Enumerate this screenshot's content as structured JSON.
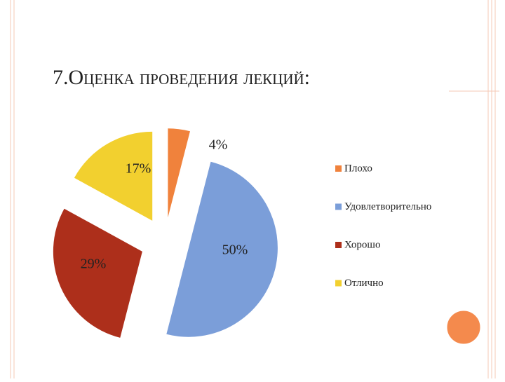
{
  "chart_data": {
    "type": "pie",
    "title": "7.Оценка проведения лекций:",
    "categories": [
      "Плохо",
      "Удовлетворительно",
      "Хорошо",
      "Отлично"
    ],
    "values": [
      4,
      50,
      29,
      17
    ],
    "value_labels": [
      "4%",
      "50%",
      "29%",
      "17%"
    ],
    "colors": [
      "#f0823c",
      "#7b9ed9",
      "#ad2f1b",
      "#f2d02f"
    ],
    "legend": "right"
  }
}
